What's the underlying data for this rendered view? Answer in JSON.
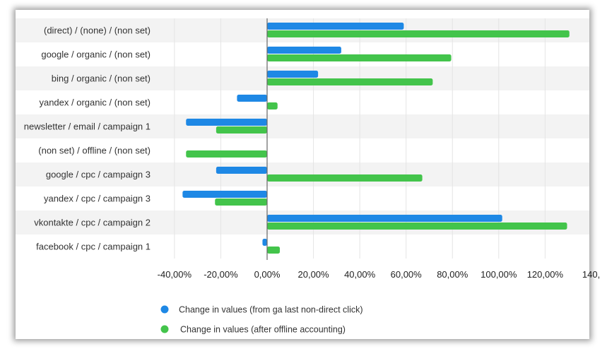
{
  "chart_data": {
    "type": "bar",
    "orientation": "horizontal",
    "categories": [
      "(direct) / (none) / (non set)",
      "google / organic / (non set)",
      "bing / organic / (non set)",
      "yandex / organic / (non set)",
      "newsletter / email / campaign 1",
      "(non set) / offline / (non set)",
      "google / cpc / campaign 3",
      "yandex / cpc / campaign 3",
      "vkontakte / cpc / campaign 2",
      "facebook / cpc / campaign 1"
    ],
    "series": [
      {
        "name": "Change in values (from ga last non-direct click)",
        "color": "#1e88e5",
        "values": [
          59,
          32,
          22,
          -13,
          -35,
          0,
          -22,
          -36.5,
          101.5,
          -2
        ]
      },
      {
        "name": "Change in values (after offline accounting)",
        "color": "#43c44b",
        "values": [
          130.5,
          79.5,
          71.5,
          4.5,
          -22,
          -35,
          67,
          -22.5,
          129.5,
          5.5
        ]
      }
    ],
    "xlim": [
      -47,
      139
    ],
    "xticks": [
      -40,
      -20,
      0,
      20,
      40,
      60,
      80,
      100,
      120,
      140
    ],
    "xtick_labels": [
      "-40,00%",
      "-20,00%",
      "0,00%",
      "20,00%",
      "40,00%",
      "60,00%",
      "80,00%",
      "100,00%",
      "120,00%",
      "140,"
    ],
    "grid": true,
    "legend_position": "bottom-left",
    "title": "",
    "xlabel": "",
    "ylabel": ""
  }
}
